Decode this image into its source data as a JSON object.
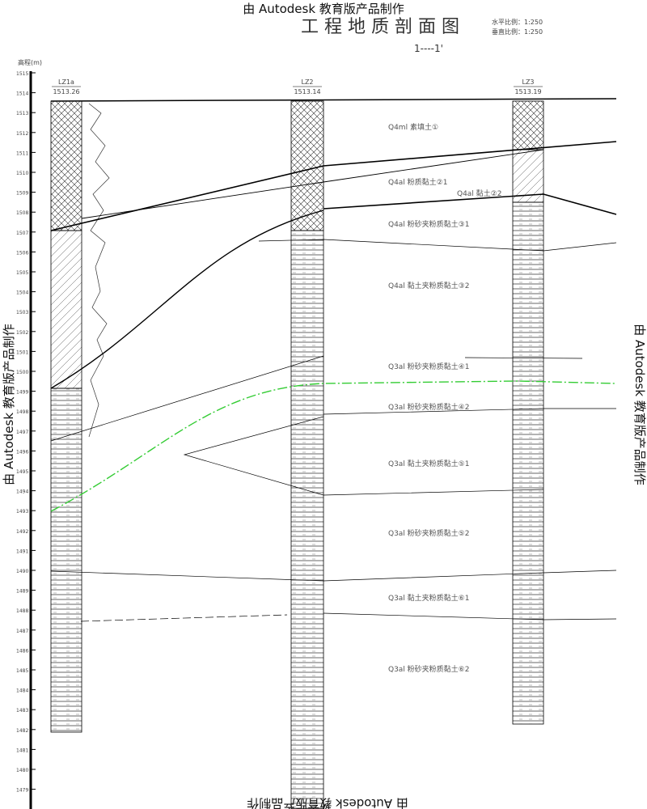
{
  "watermarks": {
    "top": "由 Autodesk 教育版产品制作",
    "left": "由 Autodesk 教育版产品制作",
    "right": "由 Autodesk 教育版产品制作",
    "bottom": "由 Autodesk 教育版产品制作"
  },
  "header": {
    "title": "工 程 地 质 剖 面 图",
    "section": "1----1'",
    "scale_h": "水平比例：1:250",
    "scale_v": "垂直比例：1:250"
  },
  "axis": {
    "label": "高程(m)",
    "ticks": [
      1515,
      1514,
      1513,
      1512,
      1511,
      1510,
      1509,
      1508,
      1507,
      1506,
      1505,
      1504,
      1503,
      1502,
      1501,
      1500,
      1499,
      1498,
      1497,
      1496,
      1495,
      1494,
      1493,
      1492,
      1491,
      1490,
      1489,
      1488,
      1487,
      1486,
      1485,
      1484,
      1483,
      1482,
      1481,
      1480,
      1479
    ]
  },
  "boreholes": [
    {
      "id": "LZ1a",
      "elevation": "1513.26"
    },
    {
      "id": "LZ2",
      "elevation": "1513.14"
    },
    {
      "id": "LZ3",
      "elevation": "1513.19"
    }
  ],
  "layers": [
    "Q4ml 素填土①",
    "Q4al 粉质黏土②1",
    "Q4al 黏土②2",
    "Q4al 粉砂夹粉质黏土③1",
    "Q4al 黏土夹粉质黏土③2",
    "Q3al 粉砂夹粉质黏土④1",
    "Q3al 粉砂夹粉质黏土④2",
    "Q3al 黏土夹粉质黏土⑤1",
    "Q3al 粉砂夹粉质黏土⑤2",
    "Q3al 黏土夹粉质黏土⑥1",
    "Q3al 粉砂夹粉质黏土⑥2"
  ]
}
